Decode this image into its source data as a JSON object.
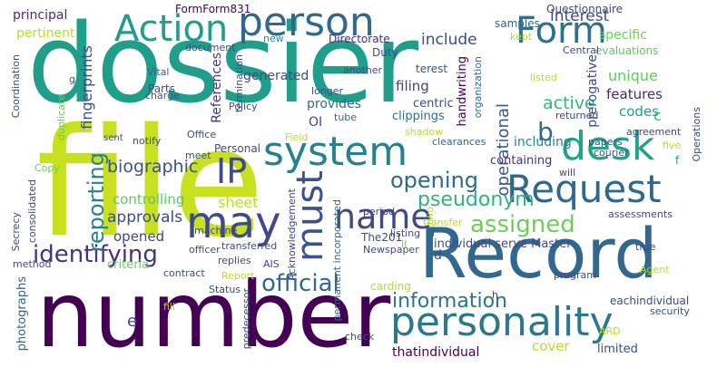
{
  "palette": {
    "dark_purple": "#440154",
    "purple": "#482878",
    "indigo": "#3e4a89",
    "blue": "#31688e",
    "teal_blue": "#26828e",
    "teal": "#1f9e89",
    "green": "#35b779",
    "light_green": "#6ece58",
    "yellow_green": "#b5de2b",
    "yellow": "#d8e219"
  },
  "words": [
    {
      "text": "dossier",
      "color": "#1f9e89"
    },
    {
      "text": "file",
      "color": "#c8e020"
    },
    {
      "text": "number",
      "color": "#440154"
    },
    {
      "text": "Record",
      "color": "#31688e"
    },
    {
      "text": "person",
      "color": "#31688e"
    },
    {
      "text": "Action",
      "color": "#1f9e89"
    },
    {
      "text": "Form",
      "color": "#2c728e"
    },
    {
      "text": "desk",
      "color": "#20a386"
    },
    {
      "text": "Request",
      "color": "#31688e"
    },
    {
      "text": "system",
      "color": "#26828e"
    },
    {
      "text": "must",
      "color": "#3b528b"
    },
    {
      "text": "may",
      "color": "#3e4a89"
    },
    {
      "text": "IP",
      "color": "#3e4a89"
    },
    {
      "text": "name",
      "color": "#3e4a89"
    },
    {
      "text": "personality",
      "color": "#2a788e"
    },
    {
      "text": "identifying",
      "color": "#46327e"
    },
    {
      "text": "official",
      "color": "#31688e"
    },
    {
      "text": "information",
      "color": "#2c728e"
    },
    {
      "text": "assigned",
      "color": "#6ece58"
    },
    {
      "text": "opening",
      "color": "#31688e"
    },
    {
      "text": "pseudonym",
      "color": "#2fb47c"
    },
    {
      "text": "reporting",
      "color": "#26828e"
    },
    {
      "text": "biographic",
      "color": "#3b528b"
    },
    {
      "text": "approvals",
      "color": "#3e4a89"
    },
    {
      "text": "opened",
      "color": "#414487"
    },
    {
      "text": "sheet",
      "color": "#b5de2b"
    },
    {
      "text": "controlling",
      "color": "#5ec962"
    },
    {
      "text": "b",
      "color": "#31688e"
    },
    {
      "text": "operational",
      "color": "#38598c"
    },
    {
      "text": "active",
      "color": "#35b779"
    },
    {
      "text": "interest",
      "color": "#3e4a89"
    },
    {
      "text": "include",
      "color": "#3e4a89"
    },
    {
      "text": "FormForm831",
      "color": "#440154"
    },
    {
      "text": "principal",
      "color": "#482878"
    },
    {
      "text": "pertinent",
      "color": "#b5de2b"
    },
    {
      "text": "fingerprints",
      "color": "#3e4a89"
    },
    {
      "text": "Questionnaire",
      "color": "#414487"
    },
    {
      "text": "samples",
      "color": "#31688e"
    },
    {
      "text": "Duty",
      "color": "#3e4a89"
    },
    {
      "text": "Directorate",
      "color": "#472d7b"
    },
    {
      "text": "document",
      "color": "#3e4a89"
    },
    {
      "text": "new",
      "color": "#21918c"
    },
    {
      "text": "specific",
      "color": "#6ece58"
    },
    {
      "text": "evaluations",
      "color": "#5ec962"
    },
    {
      "text": "unique",
      "color": "#5ec962"
    },
    {
      "text": "prerogative",
      "color": "#3e4a89"
    },
    {
      "text": "features",
      "color": "#482878"
    },
    {
      "text": "codes",
      "color": "#1f9e89"
    },
    {
      "text": "c",
      "color": "#35b779"
    },
    {
      "text": "including",
      "color": "#26828e"
    },
    {
      "text": "containing",
      "color": "#46327e"
    },
    {
      "text": "generated",
      "color": "#3e4a89"
    },
    {
      "text": "terest",
      "color": "#3b528b"
    },
    {
      "text": "filing",
      "color": "#414487"
    },
    {
      "text": "provides",
      "color": "#31688e"
    },
    {
      "text": "centric",
      "color": "#3e4a89"
    },
    {
      "text": "clippings",
      "color": "#2c728e"
    },
    {
      "text": "handwriting",
      "color": "#440154"
    },
    {
      "text": "organization",
      "color": "#2c728e"
    },
    {
      "text": "References",
      "color": "#46327e"
    },
    {
      "text": "Parts",
      "color": "#3e4a89"
    },
    {
      "text": "charge",
      "color": "#3b528b"
    },
    {
      "text": "Vital",
      "color": "#38598c"
    },
    {
      "text": "termination",
      "color": "#3e4a89"
    },
    {
      "text": "Policy",
      "color": "#3e4a89"
    },
    {
      "text": "longer",
      "color": "#3e4a89"
    },
    {
      "text": "another",
      "color": "#3e4a89"
    },
    {
      "text": "OI",
      "color": "#3e4a89"
    },
    {
      "text": "tube",
      "color": "#31688e"
    },
    {
      "text": "returned",
      "color": "#3e4a89"
    },
    {
      "text": "Office",
      "color": "#3e4a89"
    },
    {
      "text": "Personal",
      "color": "#3e4a89"
    },
    {
      "text": "meet",
      "color": "#3e4a89"
    },
    {
      "text": "Field",
      "color": "#b5de2b"
    },
    {
      "text": "shadow",
      "color": "#b5de2b"
    },
    {
      "text": "clearances",
      "color": "#31688e"
    },
    {
      "text": "notify",
      "color": "#3e4a89"
    },
    {
      "text": "sent",
      "color": "#3e4a89"
    },
    {
      "text": "courier",
      "color": "#3e4a89"
    },
    {
      "text": "papers",
      "color": "#3e4a89"
    },
    {
      "text": "five",
      "color": "#b5de2b"
    },
    {
      "text": "f",
      "color": "#1f9e89"
    },
    {
      "text": "will",
      "color": "#3e4a89"
    },
    {
      "text": "Operations",
      "color": "#3e4a89"
    },
    {
      "text": "agreement",
      "color": "#3e4a89"
    },
    {
      "text": "Central",
      "color": "#3e4a89"
    },
    {
      "text": "listed",
      "color": "#b5de2b"
    },
    {
      "text": "kept",
      "color": "#b5de2b"
    },
    {
      "text": "Coordination",
      "color": "#3e4a89"
    },
    {
      "text": "g",
      "color": "#3e4a89"
    },
    {
      "text": "duplicate",
      "color": "#6ece58"
    },
    {
      "text": "Copy",
      "color": "#6ece58"
    },
    {
      "text": "Secrecy",
      "color": "#3e4a89"
    },
    {
      "text": "consolidated",
      "color": "#3e4a89"
    },
    {
      "text": "method",
      "color": "#3e4a89"
    },
    {
      "text": "machine",
      "color": "#3e4a89"
    },
    {
      "text": "transferred",
      "color": "#3e4a89"
    },
    {
      "text": "Acknowledgement",
      "color": "#3e4a89"
    },
    {
      "text": "permanent incorporated",
      "color": "#31688e"
    },
    {
      "text": "period",
      "color": "#3e4a89"
    },
    {
      "text": "listing",
      "color": "#3e4a89"
    },
    {
      "text": "transfer",
      "color": "#b5de2b"
    },
    {
      "text": "two",
      "color": "#b5de2b"
    },
    {
      "text": "assessments",
      "color": "#3e4a89"
    },
    {
      "text": "II",
      "color": "#6ece58"
    },
    {
      "text": "j",
      "color": "#3e4a89"
    },
    {
      "text": "The201",
      "color": "#3e4a89"
    },
    {
      "text": "Newspaper",
      "color": "#3e4a89"
    },
    {
      "text": "individual serve Master",
      "color": "#3e4a89"
    },
    {
      "text": "true",
      "color": "#3e4a89"
    },
    {
      "text": "criteria",
      "color": "#6ece58"
    },
    {
      "text": "officer",
      "color": "#3e4a89"
    },
    {
      "text": "replies",
      "color": "#3e4a89"
    },
    {
      "text": "AIS",
      "color": "#3e4a89"
    },
    {
      "text": "Report",
      "color": "#b5de2b"
    },
    {
      "text": "contract",
      "color": "#3e4a89"
    },
    {
      "text": "Status",
      "color": "#3e4a89"
    },
    {
      "text": "d",
      "color": "#3e4a89"
    },
    {
      "text": "carding",
      "color": "#b5de2b"
    },
    {
      "text": "program",
      "color": "#3e4a89"
    },
    {
      "text": "Agent",
      "color": "#b5de2b"
    },
    {
      "text": "photographs",
      "color": "#31688e"
    },
    {
      "text": "e",
      "color": "#3e4a89"
    },
    {
      "text": "fill",
      "color": "#b5de2b"
    },
    {
      "text": "predecessor",
      "color": "#3e4a89"
    },
    {
      "text": "check",
      "color": "#3e4a89"
    },
    {
      "text": "h",
      "color": "#3e4a89"
    },
    {
      "text": "eachindividual",
      "color": "#3e4a89"
    },
    {
      "text": "security",
      "color": "#3e4a89"
    },
    {
      "text": "ARD",
      "color": "#b5de2b"
    },
    {
      "text": "thatindividual",
      "color": "#440154"
    },
    {
      "text": "cover",
      "color": "#b5de2b"
    },
    {
      "text": "limited",
      "color": "#3e4a89"
    }
  ]
}
